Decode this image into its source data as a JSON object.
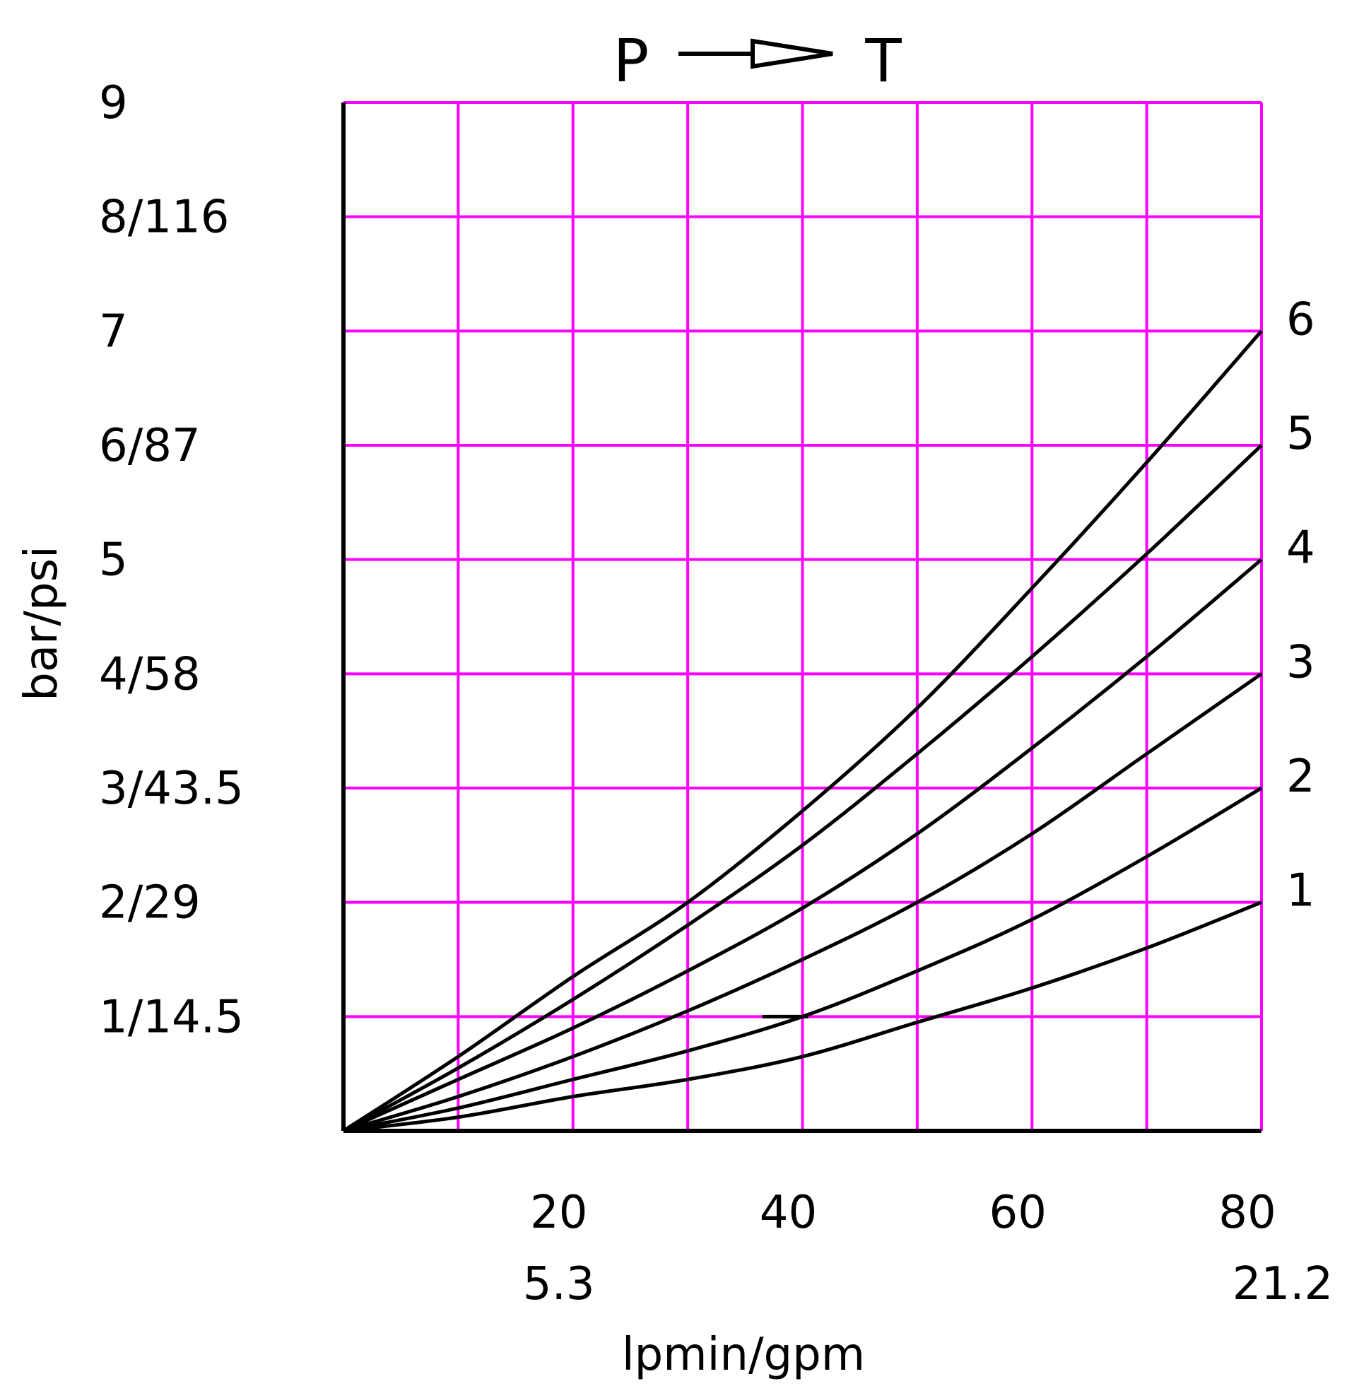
{
  "chart_data": {
    "type": "line",
    "title": {
      "from": "P",
      "to": "T"
    },
    "xlabel": "lpmin/gpm",
    "ylabel": "bar/psi",
    "xlim": [
      0,
      80
    ],
    "ylim": [
      0,
      9
    ],
    "grid": true,
    "grid_color": "#ff00ff",
    "line_color": "#000000",
    "y_ticks": [
      {
        "value": 1,
        "label": "1/14.5"
      },
      {
        "value": 2,
        "label": "2/29"
      },
      {
        "value": 3,
        "label": "3/43.5"
      },
      {
        "value": 4,
        "label": "4/58"
      },
      {
        "value": 5,
        "label": "5"
      },
      {
        "value": 6,
        "label": "6/87"
      },
      {
        "value": 7,
        "label": "7"
      },
      {
        "value": 8,
        "label": "8/116"
      },
      {
        "value": 9,
        "label": "9"
      }
    ],
    "x_ticks": [
      {
        "value": 20,
        "label": "20",
        "label2": "5.3"
      },
      {
        "value": 40,
        "label": "40",
        "label2": ""
      },
      {
        "value": 60,
        "label": "60",
        "label2": ""
      },
      {
        "value": 80,
        "label": "80",
        "label2": "21.2"
      }
    ],
    "x": [
      0,
      10,
      20,
      30,
      40,
      50,
      60,
      70,
      80
    ],
    "series": [
      {
        "name": "1",
        "values": [
          0,
          0.12,
          0.3,
          0.45,
          0.65,
          0.95,
          1.25,
          1.6,
          2.0
        ]
      },
      {
        "name": "2",
        "values": [
          0,
          0.2,
          0.45,
          0.7,
          1.0,
          1.4,
          1.85,
          2.4,
          3.0
        ]
      },
      {
        "name": "3",
        "values": [
          0,
          0.3,
          0.65,
          1.05,
          1.5,
          2.0,
          2.6,
          3.3,
          4.0
        ]
      },
      {
        "name": "4",
        "values": [
          0,
          0.45,
          0.9,
          1.4,
          1.95,
          2.6,
          3.35,
          4.15,
          5.0
        ]
      },
      {
        "name": "5",
        "values": [
          0,
          0.55,
          1.15,
          1.8,
          2.5,
          3.3,
          4.15,
          5.05,
          6.0
        ]
      },
      {
        "name": "6",
        "values": [
          0,
          0.65,
          1.35,
          2.0,
          2.8,
          3.7,
          4.75,
          5.85,
          7.0
        ]
      }
    ]
  }
}
